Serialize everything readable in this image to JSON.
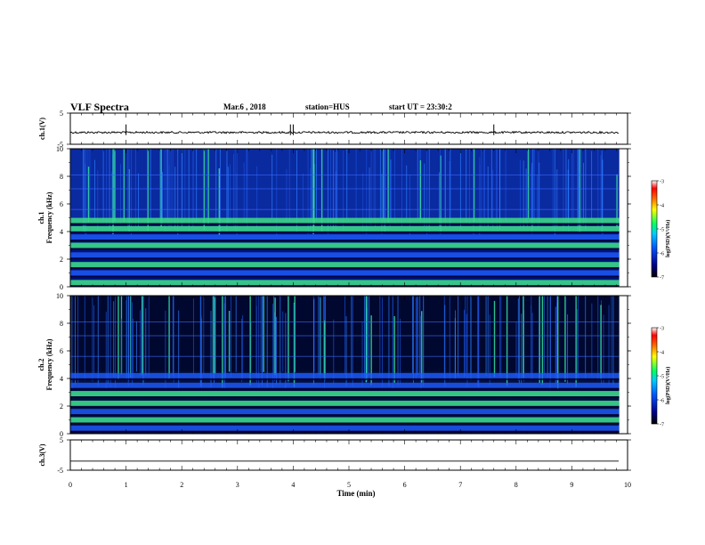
{
  "header": {
    "title": "VLF Spectra",
    "date": "Mar.6 , 2018",
    "station": "station=HUS",
    "start": "start UT = 23:30:2"
  },
  "colors": {
    "background": "#ffffff",
    "axis": "#000000",
    "spectrogram_low": "#00006e",
    "spectrogram_mid": "#1f5cff",
    "spectrogram_band": "#3bd88a",
    "trace": "#000000"
  },
  "chart_data": [
    {
      "type": "line",
      "name_panel": "ch1-waveform",
      "ylabel": "ch.1(V)",
      "ylim": [
        -5,
        5
      ],
      "yticks": [
        "5",
        "-5"
      ],
      "x_range_min": [
        0,
        10
      ],
      "baseline_value": -1.2,
      "spikes_min": [
        1.0,
        3.95,
        4.0,
        7.6
      ]
    },
    {
      "type": "heatmap",
      "name_panel": "ch1-spectrogram",
      "ylabel_top": "ch.1",
      "ylabel": "Frequency (kHz)",
      "ylim": [
        0,
        10
      ],
      "yticks": [
        "0",
        "2",
        "4",
        "6",
        "8",
        "10"
      ],
      "x_range_min": [
        0,
        9.85
      ],
      "bands_khz": [
        {
          "center": 0.3,
          "level": "high"
        },
        {
          "center": 1.0,
          "level": "mid"
        },
        {
          "center": 1.6,
          "level": "high"
        },
        {
          "center": 2.3,
          "level": "mid"
        },
        {
          "center": 3.0,
          "level": "high"
        },
        {
          "center": 3.6,
          "level": "mid"
        },
        {
          "center": 4.2,
          "level": "high"
        },
        {
          "center": 4.8,
          "level": "high"
        }
      ],
      "colorbar": {
        "label": "log(PSD)(V²/Hz)",
        "range": [
          -7,
          -3
        ],
        "ticks": [
          "-3",
          "-4",
          "-5",
          "-6",
          "-7"
        ]
      }
    },
    {
      "type": "heatmap",
      "name_panel": "ch2-spectrogram",
      "ylabel_top": "ch.2",
      "ylabel": "Frequency (kHz)",
      "ylim": [
        0,
        10
      ],
      "yticks": [
        "0",
        "2",
        "4",
        "6",
        "8",
        "10"
      ],
      "x_range_min": [
        0,
        9.85
      ],
      "bands_khz": [
        {
          "center": 0.4,
          "level": "mid"
        },
        {
          "center": 1.0,
          "level": "high"
        },
        {
          "center": 1.6,
          "level": "mid"
        },
        {
          "center": 2.2,
          "level": "high"
        },
        {
          "center": 2.9,
          "level": "high"
        },
        {
          "center": 3.5,
          "level": "mid"
        },
        {
          "center": 4.2,
          "level": "mid"
        }
      ],
      "colorbar": {
        "label": "log(PSD)(V²/Hz)",
        "range": [
          -7,
          -3
        ],
        "ticks": [
          "-3",
          "-4",
          "-5",
          "-6",
          "-7"
        ]
      }
    },
    {
      "type": "line",
      "name_panel": "ch3-waveform",
      "ylabel": "ch.3(V)",
      "ylim": [
        -5,
        5
      ],
      "yticks": [
        "5",
        "-5"
      ],
      "x_range_min": [
        0,
        10
      ],
      "baseline_value": -2.0,
      "spikes_min": []
    }
  ],
  "xaxis": {
    "label": "Time (min)",
    "range": [
      0,
      10
    ],
    "ticks": [
      "0",
      "1",
      "2",
      "3",
      "4",
      "5",
      "6",
      "7",
      "8",
      "9",
      "10"
    ]
  }
}
